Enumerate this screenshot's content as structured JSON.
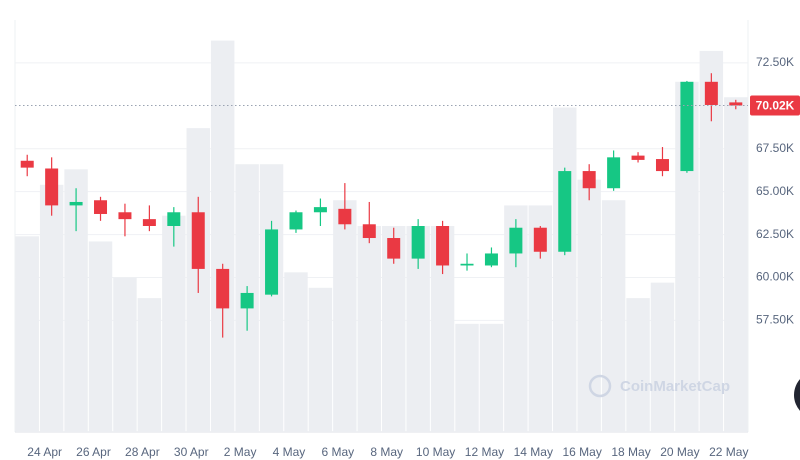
{
  "chart_data": {
    "type": "candlestick",
    "categories": [
      null,
      "24 Apr",
      null,
      "26 Apr",
      null,
      "28 Apr",
      null,
      "30 Apr",
      null,
      "2 May",
      null,
      "4 May",
      null,
      "6 May",
      null,
      "8 May",
      null,
      "10 May",
      null,
      "12 May",
      null,
      "14 May",
      null,
      "16 May",
      null,
      "18 May",
      null,
      "20 May",
      null,
      "22 May"
    ],
    "open": [
      66.8,
      66.35,
      64.2,
      64.5,
      63.8,
      63.4,
      63.0,
      63.8,
      60.5,
      58.2,
      59.0,
      62.8,
      63.8,
      64.0,
      63.1,
      62.3,
      61.1,
      63.0,
      60.7,
      60.7,
      61.4,
      62.9,
      61.5,
      66.2,
      65.2,
      67.1,
      66.9,
      66.2,
      71.4,
      70.2
    ],
    "high": [
      67.15,
      67.0,
      65.2,
      64.7,
      64.3,
      64.2,
      64.1,
      64.7,
      60.8,
      59.5,
      63.3,
      63.9,
      64.6,
      65.5,
      64.4,
      62.9,
      63.4,
      63.3,
      61.4,
      61.75,
      63.4,
      63.0,
      66.4,
      66.6,
      67.4,
      67.3,
      67.6,
      71.45,
      71.9,
      70.35
    ],
    "low": [
      65.9,
      63.6,
      62.7,
      63.3,
      62.4,
      62.7,
      61.8,
      59.1,
      56.5,
      56.9,
      58.9,
      62.6,
      63.0,
      62.8,
      62.0,
      60.8,
      60.5,
      60.2,
      60.4,
      60.6,
      60.6,
      61.1,
      61.3,
      64.5,
      65.05,
      66.7,
      65.9,
      66.1,
      69.1,
      69.8
    ],
    "close": [
      66.4,
      64.2,
      64.4,
      63.7,
      63.4,
      63.0,
      63.8,
      60.5,
      58.2,
      59.1,
      62.8,
      63.8,
      64.1,
      63.1,
      62.3,
      61.1,
      63.0,
      60.7,
      60.8,
      61.4,
      62.9,
      61.5,
      66.2,
      65.2,
      67.0,
      66.85,
      66.2,
      71.4,
      70.05,
      70.02
    ],
    "volumes": [
      38,
      48,
      51,
      37,
      30,
      26,
      42,
      59,
      76,
      52,
      52,
      31,
      28,
      45,
      40,
      40,
      40,
      40,
      21,
      21,
      44,
      44,
      63,
      49,
      45,
      26,
      29,
      68,
      74,
      65
    ],
    "vlim": [
      0,
      80
    ],
    "up_color": "#16c784",
    "down_color": "#ea3943",
    "volume_color": "#eceef2",
    "ylim": [
      51,
      75
    ],
    "yticks": [
      {
        "value": 57.5,
        "label": "57.50K"
      },
      {
        "value": 60,
        "label": "60.00K"
      },
      {
        "value": 62.5,
        "label": "62.50K"
      },
      {
        "value": 65,
        "label": "65.00K"
      },
      {
        "value": 67.5,
        "label": "67.50K"
      },
      {
        "value": 72.5,
        "label": "72.50K"
      }
    ],
    "last_price": {
      "value": 70.02,
      "label": "70.02K"
    },
    "watermark": "CoinMarketCap",
    "grid": true
  }
}
